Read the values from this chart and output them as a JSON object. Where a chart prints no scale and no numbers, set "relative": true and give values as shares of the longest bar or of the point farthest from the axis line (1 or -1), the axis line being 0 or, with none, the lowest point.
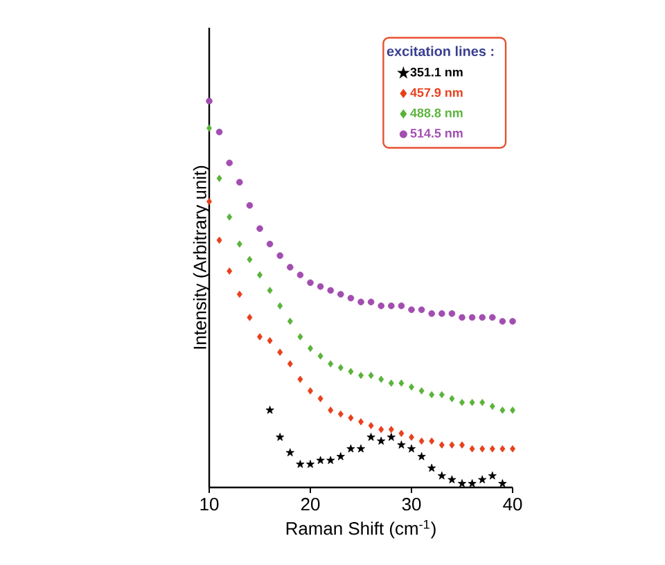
{
  "chart_data": {
    "type": "scatter",
    "xlabel": "Raman Shift (cm$^{-1}$)",
    "ylabel": "Intensity (Arbitrary unit)",
    "legend_title": "excitation lines :",
    "legend": "top right",
    "relative": true,
    "tick_labels": "x",
    "grid": false,
    "xlim": [
      10,
      40
    ],
    "xticks": [
      10,
      20,
      30,
      40
    ],
    "series": [
      {
        "name": "351.1 nm",
        "color": "#000000",
        "marker": "star",
        "x": [
          16,
          17,
          18,
          19,
          20,
          21,
          22,
          23,
          24,
          25,
          26,
          27,
          28,
          29,
          30,
          31,
          32,
          33,
          34,
          35,
          36,
          37,
          38,
          39
        ],
        "values": [
          0.2,
          0.13,
          0.09,
          0.06,
          0.06,
          0.07,
          0.07,
          0.08,
          0.1,
          0.1,
          0.13,
          0.12,
          0.13,
          0.11,
          0.1,
          0.08,
          0.05,
          0.03,
          0.02,
          0.01,
          0.01,
          0.02,
          0.03,
          0.01
        ]
      },
      {
        "name": "457.9 nm",
        "color": "#e8401c",
        "marker": "diamond",
        "x": [
          10,
          11,
          12,
          13,
          14,
          15,
          16,
          17,
          18,
          19,
          20,
          21,
          22,
          23,
          24,
          25,
          26,
          27,
          28,
          29,
          30,
          31,
          32,
          33,
          34,
          35,
          36,
          37,
          38,
          39,
          40
        ],
        "values": [
          0.74,
          0.64,
          0.56,
          0.5,
          0.44,
          0.39,
          0.38,
          0.35,
          0.32,
          0.28,
          0.25,
          0.23,
          0.2,
          0.19,
          0.18,
          0.17,
          0.16,
          0.15,
          0.15,
          0.14,
          0.13,
          0.12,
          0.12,
          0.11,
          0.11,
          0.11,
          0.1,
          0.1,
          0.1,
          0.1,
          0.1
        ]
      },
      {
        "name": "488.8 nm",
        "color": "#5ab33a",
        "marker": "diamond",
        "x": [
          10,
          11,
          12,
          13,
          14,
          15,
          16,
          17,
          18,
          19,
          20,
          21,
          22,
          23,
          24,
          25,
          26,
          27,
          28,
          29,
          30,
          31,
          32,
          33,
          34,
          35,
          36,
          37,
          38,
          39,
          40
        ],
        "values": [
          0.93,
          0.8,
          0.7,
          0.63,
          0.59,
          0.55,
          0.51,
          0.47,
          0.43,
          0.39,
          0.36,
          0.34,
          0.32,
          0.31,
          0.3,
          0.29,
          0.29,
          0.28,
          0.27,
          0.27,
          0.26,
          0.25,
          0.24,
          0.24,
          0.23,
          0.22,
          0.22,
          0.22,
          0.21,
          0.2,
          0.2
        ]
      },
      {
        "name": "514.5 nm",
        "color": "#a24db0",
        "marker": "circle",
        "x": [
          10,
          11,
          12,
          13,
          14,
          15,
          16,
          17,
          18,
          19,
          20,
          21,
          22,
          23,
          24,
          25,
          26,
          27,
          28,
          29,
          30,
          31,
          32,
          33,
          34,
          35,
          36,
          37,
          38,
          39,
          40
        ],
        "values": [
          1.0,
          0.92,
          0.84,
          0.79,
          0.73,
          0.67,
          0.63,
          0.6,
          0.57,
          0.55,
          0.53,
          0.52,
          0.51,
          0.5,
          0.49,
          0.48,
          0.48,
          0.47,
          0.47,
          0.47,
          0.46,
          0.46,
          0.45,
          0.45,
          0.45,
          0.44,
          0.44,
          0.44,
          0.44,
          0.43,
          0.43
        ]
      }
    ]
  }
}
